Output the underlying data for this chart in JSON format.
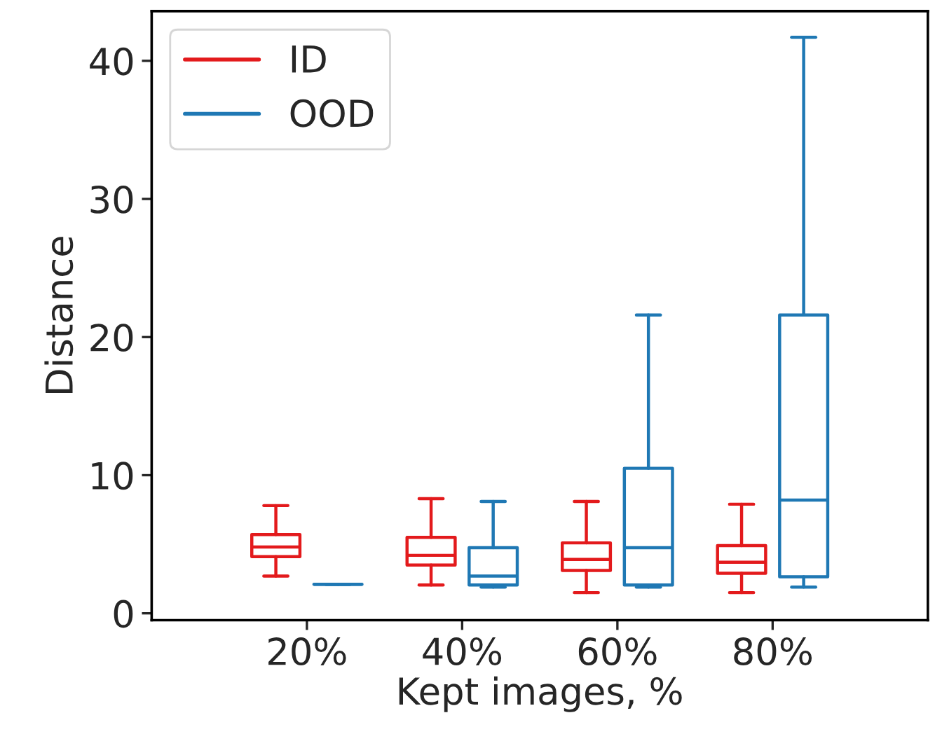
{
  "chart_data": {
    "type": "box",
    "xlabel": "Kept images, %",
    "ylabel": "Distance",
    "categories": [
      "20%",
      "40%",
      "60%",
      "80%"
    ],
    "series": [
      {
        "name": "ID",
        "color": "#e31a1c",
        "boxes": [
          {
            "low": 2.7,
            "q1": 4.1,
            "median": 4.8,
            "q3": 5.7,
            "high": 7.8
          },
          {
            "low": 2.05,
            "q1": 3.5,
            "median": 4.2,
            "q3": 5.5,
            "high": 8.3
          },
          {
            "low": 1.5,
            "q1": 3.1,
            "median": 3.9,
            "q3": 5.1,
            "high": 8.1
          },
          {
            "low": 1.5,
            "q1": 2.9,
            "median": 3.7,
            "q3": 4.9,
            "high": 7.9
          }
        ]
      },
      {
        "name": "OOD",
        "color": "#1f78b4",
        "boxes": [
          {
            "low": 2.1,
            "q1": 2.1,
            "median": 2.1,
            "q3": 2.1,
            "high": 2.1
          },
          {
            "low": 1.9,
            "q1": 2.05,
            "median": 2.7,
            "q3": 4.75,
            "high": 8.1
          },
          {
            "low": 1.9,
            "q1": 2.05,
            "median": 4.75,
            "q3": 10.5,
            "high": 21.6
          },
          {
            "low": 1.9,
            "q1": 2.65,
            "median": 8.2,
            "q3": 21.6,
            "high": 41.7
          }
        ]
      }
    ],
    "ylim": [
      -0.5,
      43.6
    ],
    "yticks": [
      0,
      10,
      20,
      30,
      40
    ],
    "legend": "top left"
  }
}
